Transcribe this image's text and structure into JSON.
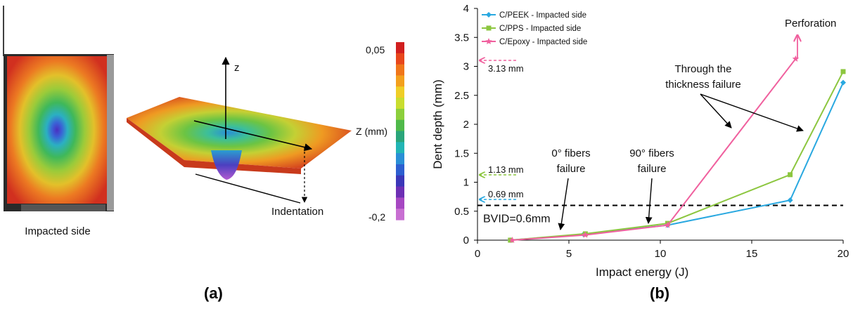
{
  "panel_a": {
    "specimen_label": "Impacted side",
    "axis_label": "z",
    "indentation_label": "Indentation",
    "colorbar": {
      "max_label": "0,05",
      "min_label": "-0,2",
      "unit_label": "Z (mm)",
      "colors": [
        "#d11f1f",
        "#e8471c",
        "#f0761a",
        "#f3a01d",
        "#efce27",
        "#c9dd2f",
        "#8ccf3c",
        "#4fb94a",
        "#2aa57a",
        "#22b5b5",
        "#2a8fd6",
        "#2d5fd0",
        "#3b37b8",
        "#6d2fb4",
        "#a647c2",
        "#c86fd2"
      ]
    },
    "panel_label": "(a)"
  },
  "panel_b": {
    "panel_label": "(b)"
  },
  "chart_data": {
    "type": "line",
    "xlabel": "Impact energy (J)",
    "ylabel": "Dent depth (mm)",
    "xlim": [
      0,
      20
    ],
    "ylim": [
      0,
      4
    ],
    "x_ticks": [
      "0",
      "5",
      "10",
      "15",
      "20"
    ],
    "y_ticks": [
      "0",
      "0.5",
      "1",
      "1.5",
      "2",
      "2.5",
      "3",
      "3.5",
      "4"
    ],
    "grid": false,
    "legend_position": "top-left",
    "series": [
      {
        "name": "C/PEEK - Impacted side",
        "color": "#29a8e0",
        "marker": "diamond",
        "points": [
          [
            1.8,
            0.0
          ],
          [
            5.8,
            0.1
          ],
          [
            10.4,
            0.26
          ],
          [
            17.1,
            0.69
          ],
          [
            20.0,
            2.72
          ]
        ]
      },
      {
        "name": "C/PPS - Impacted side",
        "color": "#8cc63f",
        "marker": "square",
        "points": [
          [
            1.8,
            0.0
          ],
          [
            5.9,
            0.11
          ],
          [
            10.4,
            0.29
          ],
          [
            17.1,
            1.13
          ],
          [
            20.0,
            2.91
          ]
        ]
      },
      {
        "name": "C/Epoxy - Impacted side",
        "color": "#f0609e",
        "marker": "star",
        "points": [
          [
            1.9,
            0.0
          ],
          [
            5.9,
            0.09
          ],
          [
            10.4,
            0.26
          ],
          [
            17.4,
            3.13
          ]
        ]
      }
    ],
    "reference_line": {
      "y": 0.6,
      "label": "BVID=0.6mm"
    },
    "annotations": {
      "epoxy_dent": "3.13 mm",
      "pps_dent": "1.13 mm",
      "peek_dent": "0.69 mm",
      "perforation": "Perforation",
      "thickness_failure_line1": "Through the",
      "thickness_failure_line2": "thickness failure",
      "fibers0_line1": "0° fibers",
      "fibers0_line2": "failure",
      "fibers90_line1": "90° fibers",
      "fibers90_line2": "failure"
    }
  }
}
